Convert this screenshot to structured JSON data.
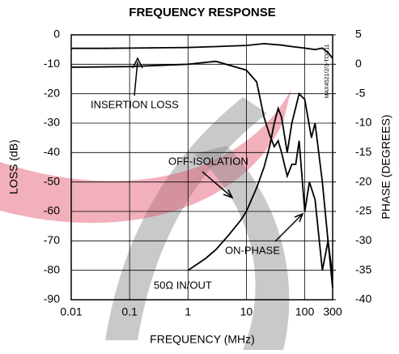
{
  "chart_data": {
    "type": "line",
    "title": "FREQUENCY RESPONSE",
    "x_label": "FREQUENCY (MHz)",
    "y_label": "LOSS (dB)",
    "y2_label": "PHASE (DEGREES)",
    "side_note": "MAX4521/2/3-TOC11",
    "x_scale": "log",
    "grid": true,
    "xlim": [
      0.01,
      300
    ],
    "xticks": [
      0.01,
      0.1,
      1,
      10,
      100,
      300
    ],
    "ylim": [
      -90,
      0
    ],
    "yticks": [
      0,
      -10,
      -20,
      -30,
      -40,
      -50,
      -60,
      -70,
      -80,
      -90
    ],
    "y2lim": [
      -40,
      5
    ],
    "y2ticks": [
      5,
      0,
      -5,
      -10,
      -15,
      -20,
      -25,
      -30,
      -35,
      -40
    ],
    "annotations": [
      "INSERTION LOSS",
      "OFF-ISOLATION",
      "ON-PHASE",
      "50Ω IN/OUT"
    ],
    "series": [
      {
        "name": "INSERTION LOSS",
        "color": "#000000",
        "axis": "y",
        "x": [
          0.01,
          0.03,
          0.1,
          0.3,
          1,
          3,
          10,
          20,
          40,
          60,
          100,
          150,
          200,
          250,
          300
        ],
        "values": [
          -4.6,
          -4.6,
          -4.5,
          -4.4,
          -4.3,
          -4,
          -3.6,
          -3,
          -3.5,
          -4,
          -4.5,
          -5,
          -4.5,
          -6,
          -8
        ]
      },
      {
        "name": "ON-PHASE",
        "color": "#000000",
        "axis": "y2",
        "x": [
          0.01,
          0.1,
          0.3,
          1,
          3,
          10,
          15,
          20,
          25,
          30,
          35,
          40,
          50,
          60,
          70,
          80,
          100,
          120,
          150,
          200,
          250,
          300
        ],
        "values": [
          -0.5,
          -0.4,
          -0.2,
          0,
          0.5,
          -1,
          -3,
          -9,
          -12,
          -14,
          -13,
          -15,
          -19,
          -17,
          -17,
          -13,
          -25,
          -20,
          -23,
          -35,
          -30,
          -38
        ]
      },
      {
        "name": "OFF-ISOLATION",
        "color": "#000000",
        "axis": "y",
        "x": [
          1,
          2,
          3,
          5,
          8,
          10,
          15,
          20,
          25,
          30,
          35,
          40,
          50,
          60,
          80,
          100,
          130,
          150,
          200,
          250,
          300
        ],
        "values": [
          -80,
          -76,
          -73,
          -68,
          -63,
          -60,
          -52,
          -45,
          -38,
          -30,
          -25,
          -28,
          -40,
          -30,
          -20,
          -22,
          -35,
          -30,
          -50,
          -70,
          -82
        ]
      }
    ]
  }
}
